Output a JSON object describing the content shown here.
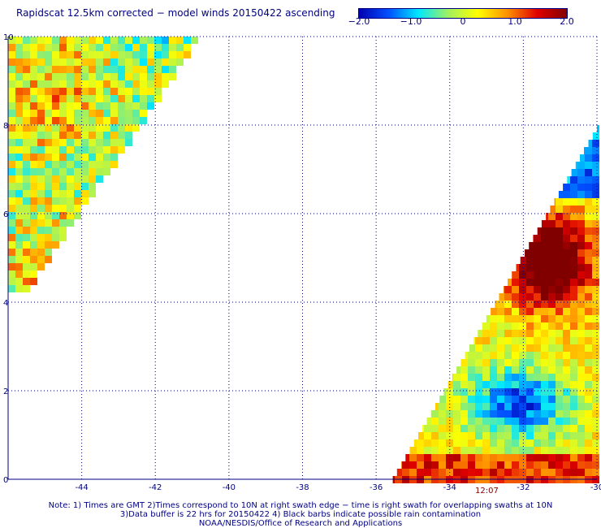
{
  "title": "Rapidscat 12.5km corrected − model winds 20150422 ascending",
  "colorbar": {
    "ticks": [
      {
        "label": "−2.0",
        "value": -2.0
      },
      {
        "label": "−1.0",
        "value": -1.0
      },
      {
        "label": "0",
        "value": 0.0
      },
      {
        "label": "1.0",
        "value": 1.0
      },
      {
        "label": "2.0",
        "value": 2.0
      }
    ],
    "range": [
      -2.0,
      2.0
    ],
    "colors": [
      "#0000b0",
      "#0050ff",
      "#00e8ff",
      "#a0f060",
      "#ffff00",
      "#ff9000",
      "#e00000",
      "#800000"
    ]
  },
  "map": {
    "lon_range": [
      -46,
      -30
    ],
    "lat_range": [
      0,
      10
    ],
    "x_ticks": [
      {
        "label": "-44",
        "value": -44
      },
      {
        "label": "-42",
        "value": -42
      },
      {
        "label": "-40",
        "value": -40
      },
      {
        "label": "-38",
        "value": -38
      },
      {
        "label": "-36",
        "value": -36
      },
      {
        "label": "-34",
        "value": -34
      },
      {
        "label": "-32",
        "value": -32
      },
      {
        "label": "-30",
        "value": -30
      }
    ],
    "y_ticks": [
      {
        "label": "0",
        "value": 0
      },
      {
        "label": "2",
        "value": 2
      },
      {
        "label": "4",
        "value": 4
      },
      {
        "label": "6",
        "value": 6
      },
      {
        "label": "8",
        "value": 8
      },
      {
        "label": "10",
        "value": 10
      }
    ],
    "grid": "dotted",
    "swaths": [
      {
        "name": "west",
        "lon_min": -46,
        "lat_min": 4.3,
        "lat_max": 10,
        "edge_lon_at_lat_max": -40.9,
        "edge_lon_at_lat_min": -45.6
      },
      {
        "name": "east",
        "lon_max": -30,
        "lat_min": 0,
        "lat_max": 8,
        "edge_lon_at_lat_min": -35.6,
        "edge_lon_at_lat_max": -30
      }
    ],
    "time_label": "12:07"
  },
  "notes": [
    "Note: 1) Times are GMT 2)Times correspond to 10N at right swath edge − time is right swath for overlapping swaths at 10N",
    "3)Data buffer is 22 hrs for 20150422 4) Black barbs indicate possible rain contamination",
    "NOAA/NESDIS/Office of Research and Applications"
  ]
}
